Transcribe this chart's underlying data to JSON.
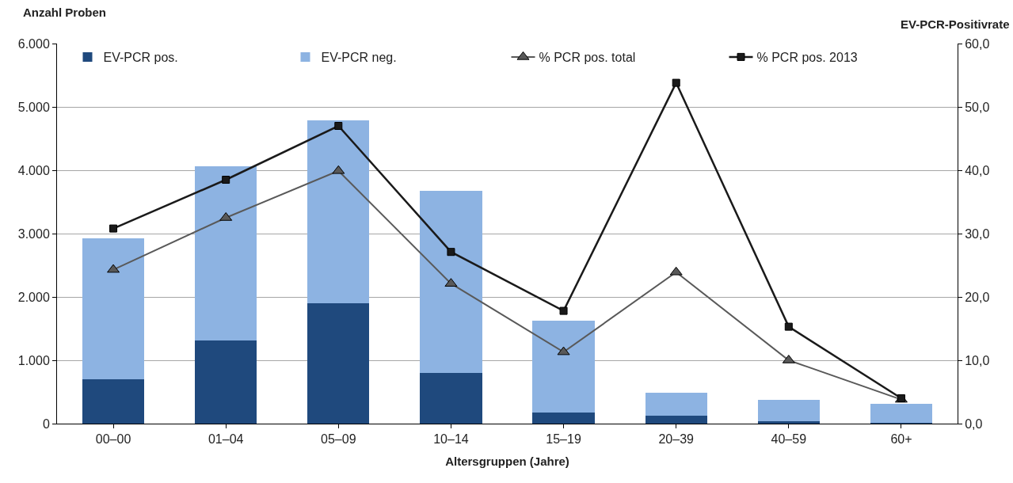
{
  "chart_data": {
    "type": "bar",
    "stacked": true,
    "xlabel": "Altersgruppen (Jahre)",
    "ylabel": "Anzahl Proben",
    "y2label": "EV-PCR-Positivrate",
    "categories": [
      "00–00",
      "01–04",
      "05–09",
      "10–14",
      "15–19",
      "20–39",
      "40–59",
      "60+"
    ],
    "series": [
      {
        "name": "EV-PCR pos.",
        "color": "#1f497d",
        "values": [
          700,
          1310,
          1900,
          800,
          180,
          120,
          40,
          10
        ]
      },
      {
        "name": "EV-PCR neg.",
        "color": "#8db3e2",
        "values": [
          2220,
          2750,
          2890,
          2880,
          1440,
          370,
          330,
          300
        ]
      },
      {
        "name": "% PCR pos. total",
        "type": "line",
        "axis": "y2",
        "marker": "triangle",
        "color": "#595959",
        "values": [
          24.3,
          32.5,
          39.9,
          22.1,
          11.3,
          23.9,
          10.0,
          3.8
        ]
      },
      {
        "name": "% PCR pos. 2013",
        "type": "line",
        "axis": "y2",
        "marker": "square",
        "color": "#1a1a1a",
        "values": [
          30.8,
          38.5,
          47.0,
          27.1,
          17.8,
          53.8,
          15.3,
          4.0
        ]
      }
    ],
    "ylim": [
      0,
      6000
    ],
    "yticks": [
      {
        "value": 0,
        "label": "0"
      },
      {
        "value": 1000,
        "label": "1.000"
      },
      {
        "value": 2000,
        "label": "2.000"
      },
      {
        "value": 3000,
        "label": "3.000"
      },
      {
        "value": 4000,
        "label": "4.000"
      },
      {
        "value": 5000,
        "label": "5.000"
      },
      {
        "value": 6000,
        "label": "6.000"
      }
    ],
    "y2lim": [
      0,
      60
    ],
    "y2ticks": [
      {
        "value": 0,
        "label": "0,0"
      },
      {
        "value": 10,
        "label": "10,0"
      },
      {
        "value": 20,
        "label": "20,0"
      },
      {
        "value": 30,
        "label": "30,0"
      },
      {
        "value": 40,
        "label": "40,0"
      },
      {
        "value": 50,
        "label": "50,0"
      },
      {
        "value": 60,
        "label": "60,0"
      }
    ],
    "grid": "y",
    "legend": "top"
  }
}
